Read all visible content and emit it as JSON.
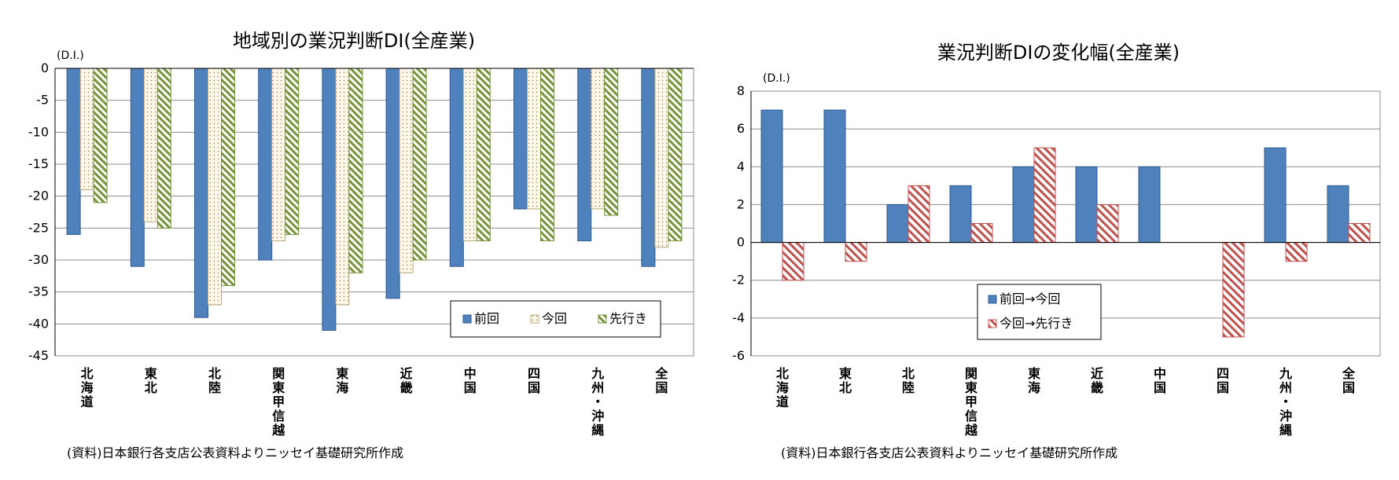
{
  "chart_data": [
    {
      "type": "bar",
      "title": "地域別の業況判断DI(全産業)",
      "unit_label": "(D.I.)",
      "categories": [
        "北海道",
        "東北",
        "北陸",
        "関東甲信越",
        "東海",
        "近畿",
        "中国",
        "四国",
        "九州・沖縄",
        "全国"
      ],
      "series": [
        {
          "name": "前回",
          "values": [
            -26,
            -31,
            -39,
            -30,
            -41,
            -36,
            -31,
            -22,
            -27,
            -31
          ],
          "color": "#4f81bd",
          "pattern": "solid"
        },
        {
          "name": "今回",
          "values": [
            -19,
            -24,
            -37,
            -27,
            -37,
            -32,
            -27,
            -22,
            -22,
            -28
          ],
          "color": "#fdf6e3",
          "pattern": "dots"
        },
        {
          "name": "先行き",
          "values": [
            -21,
            -25,
            -34,
            -26,
            -32,
            -30,
            -27,
            -27,
            -23,
            -27
          ],
          "color": "#77933c",
          "pattern": "diagonal"
        }
      ],
      "ylim": [
        -45,
        0
      ],
      "yticks": [
        0,
        -5,
        -10,
        -15,
        -20,
        -25,
        -30,
        -35,
        -40,
        -45
      ],
      "legend_position": "bottom-right",
      "grid": true,
      "source": "(資料)日本銀行各支店公表資料よりニッセイ基礎研究所作成"
    },
    {
      "type": "bar",
      "title": "業況判断DIの変化幅(全産業)",
      "unit_label": "(D.I.)",
      "categories": [
        "北海道",
        "東北",
        "北陸",
        "関東甲信越",
        "東海",
        "近畿",
        "中国",
        "四国",
        "九州・沖縄",
        "全国"
      ],
      "series": [
        {
          "name": "前回→今回",
          "values": [
            7,
            7,
            2,
            3,
            4,
            4,
            4,
            0,
            5,
            3
          ],
          "color": "#4f81bd",
          "pattern": "solid"
        },
        {
          "name": "今回→先行き",
          "values": [
            -2,
            -1,
            3,
            1,
            5,
            2,
            0,
            -5,
            -1,
            1
          ],
          "color": "#c0504d",
          "pattern": "diagonal"
        }
      ],
      "ylim": [
        -6,
        8
      ],
      "yticks": [
        8,
        6,
        4,
        2,
        0,
        -2,
        -4,
        -6
      ],
      "legend_position": "bottom-left",
      "grid": true,
      "source": "(資料)日本銀行各支店公表資料よりニッセイ基礎研究所作成"
    }
  ]
}
